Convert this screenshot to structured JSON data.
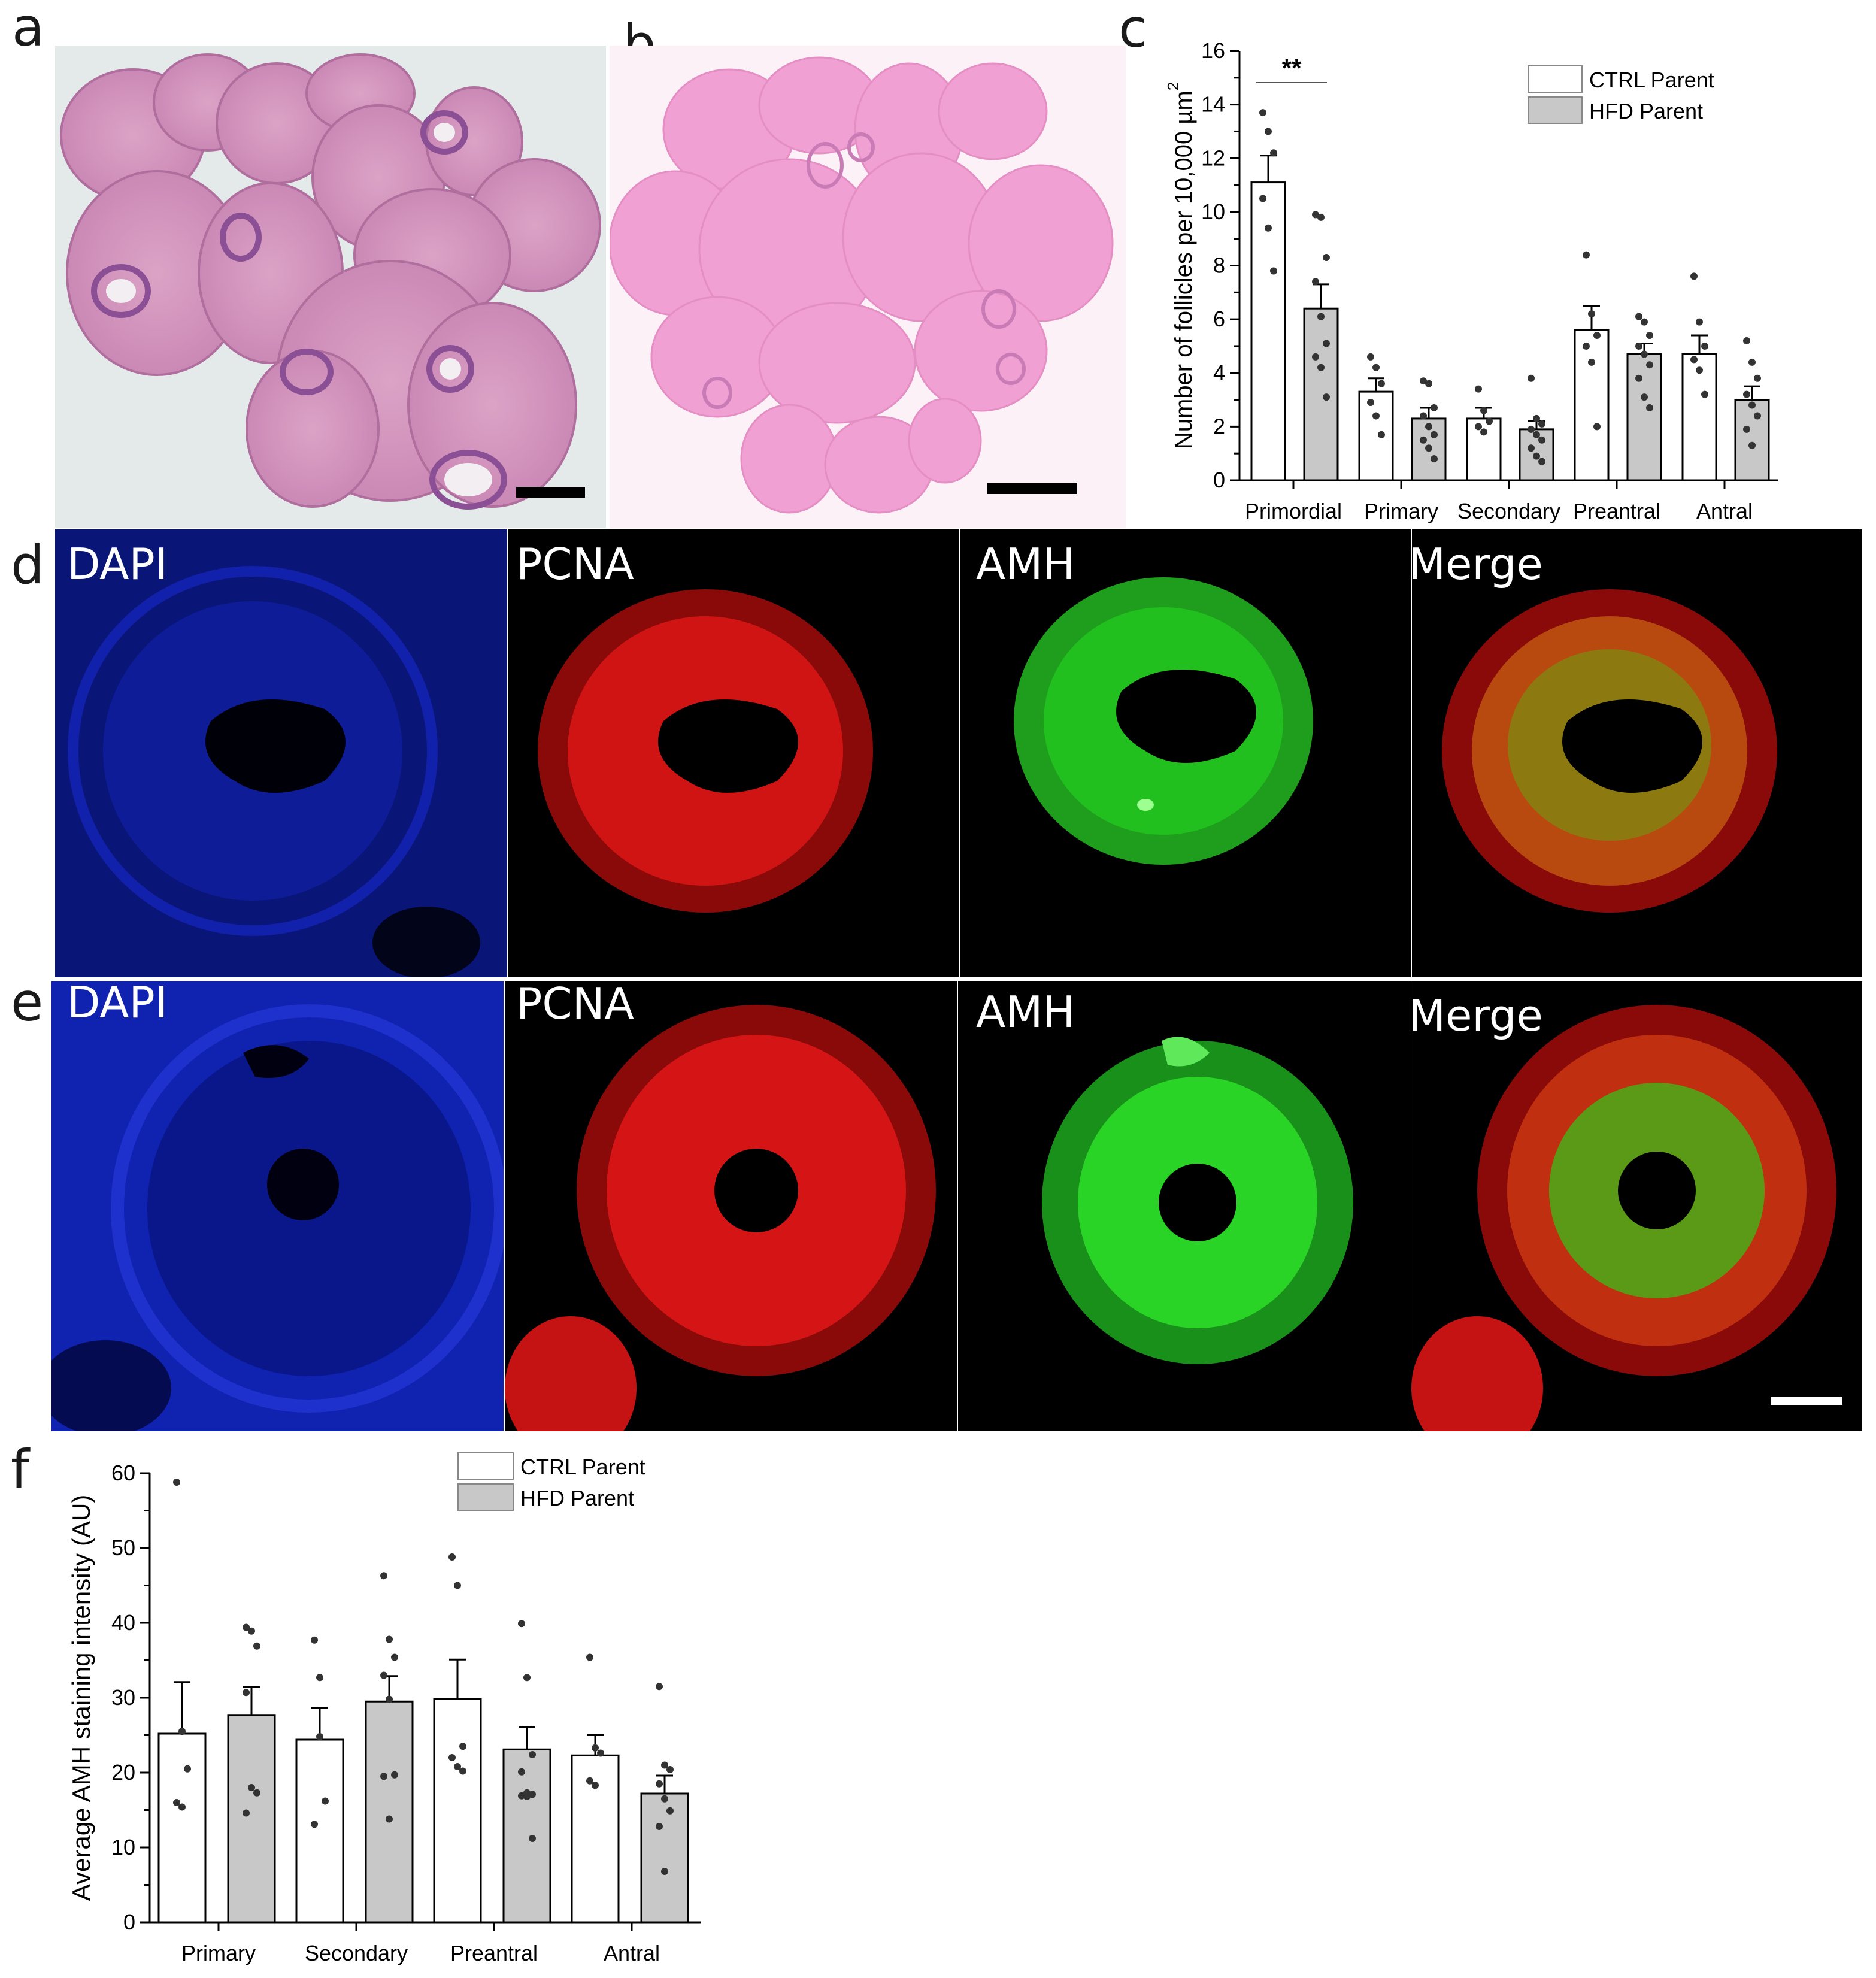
{
  "panels": {
    "a": "a",
    "b": "b",
    "c": "c",
    "d": "d",
    "e": "e",
    "f": "f"
  },
  "fluorescence": {
    "channels": [
      "DAPI",
      "PCNA",
      "AMH",
      "Merge"
    ],
    "colors": {
      "DAPI": "#1a2bd6",
      "PCNA": "#e01818",
      "AMH": "#22c01e",
      "background": "#000000"
    }
  },
  "histology": {
    "colors": {
      "stain_a": "#d79ac0",
      "stain_b": "#f3a3d7",
      "background_a": "#e7ecec",
      "background_b": "#fbf3f8"
    }
  },
  "chart_data": [
    {
      "id": "c",
      "type": "bar",
      "categories": [
        "Primordial",
        "Primary",
        "Secondary",
        "Preantral",
        "Antral"
      ],
      "ylabel_text": "Number of follicles per 10,000 µm",
      "ylabel_sup": "2",
      "ylim": [
        0,
        16
      ],
      "yticks": [
        "0",
        "2",
        "4",
        "6",
        "8",
        "10",
        "12",
        "14",
        "16"
      ],
      "legend": {
        "placement": "top-right",
        "entries": [
          "CTRL Parent",
          "HFD Parent"
        ]
      },
      "significance": {
        "label": "**",
        "category": "Primordial"
      },
      "series": [
        {
          "name": "CTRL Parent",
          "color": "#ffffff",
          "values": [
            11.1,
            3.3,
            2.3,
            5.6,
            4.7
          ],
          "errors": [
            1.0,
            0.5,
            0.4,
            0.9,
            0.7
          ],
          "points": [
            [
              13.7,
              13.0,
              12.2,
              10.5,
              9.4,
              7.8
            ],
            [
              4.6,
              4.2,
              3.6,
              2.9,
              2.4,
              1.7
            ],
            [
              3.4,
              2.6,
              2.2,
              2.0,
              1.8
            ],
            [
              8.4,
              6.2,
              5.4,
              5.0,
              4.4,
              2.0
            ],
            [
              7.6,
              5.9,
              5.0,
              4.5,
              4.1,
              3.2
            ]
          ]
        },
        {
          "name": "HFD Parent",
          "color": "#c8c8c8",
          "values": [
            6.4,
            2.3,
            1.9,
            4.7,
            3.0
          ],
          "errors": [
            0.9,
            0.4,
            0.3,
            0.4,
            0.5
          ],
          "points": [
            [
              9.9,
              9.8,
              8.3,
              7.4,
              6.1,
              5.1,
              4.6,
              4.2,
              3.1
            ],
            [
              3.7,
              3.6,
              2.7,
              2.4,
              2.0,
              1.7,
              1.5,
              1.2,
              0.8
            ],
            [
              3.8,
              2.3,
              2.1,
              1.9,
              1.7,
              1.5,
              1.2,
              0.9,
              0.7
            ],
            [
              6.1,
              5.9,
              5.4,
              5.0,
              4.7,
              4.3,
              3.8,
              3.1,
              2.7
            ],
            [
              5.2,
              4.4,
              3.8,
              3.2,
              2.8,
              2.4,
              1.9,
              1.3
            ]
          ]
        }
      ]
    },
    {
      "id": "f",
      "type": "bar",
      "categories": [
        "Primary",
        "Secondary",
        "Preantral",
        "Antral"
      ],
      "ylabel": "Average AMH staining intensity (AU)",
      "ylim": [
        0,
        60
      ],
      "yticks": [
        "0",
        "10",
        "20",
        "30",
        "40",
        "50",
        "60"
      ],
      "legend": {
        "placement": "top-center",
        "entries": [
          "CTRL Parent",
          "HFD Parent"
        ]
      },
      "series": [
        {
          "name": "CTRL Parent",
          "color": "#ffffff",
          "values": [
            25.2,
            24.4,
            29.8,
            22.3
          ],
          "errors": [
            6.9,
            4.2,
            5.3,
            2.7
          ],
          "points": [
            [
              58.8,
              25.5,
              20.5,
              16.0,
              15.4
            ],
            [
              37.7,
              32.7,
              16.2,
              13.1,
              24.8
            ],
            [
              48.8,
              45.0,
              23.5,
              22.0,
              20.8,
              20.2
            ],
            [
              35.4,
              23.3,
              22.6,
              18.9,
              18.3
            ]
          ]
        },
        {
          "name": "HFD Parent",
          "color": "#c8c8c8",
          "values": [
            27.7,
            29.5,
            23.1,
            17.2
          ],
          "errors": [
            3.7,
            3.4,
            3.0,
            2.4
          ],
          "points": [
            [
              39.4,
              38.9,
              36.9,
              30.7,
              18.0,
              17.3,
              14.6
            ],
            [
              46.3,
              37.8,
              35.4,
              33.0,
              29.8,
              19.7,
              19.5,
              13.8
            ],
            [
              39.9,
              32.7,
              22.4,
              20.1,
              17.3,
              17.1,
              16.9,
              16.8,
              11.2
            ],
            [
              31.5,
              21.0,
              20.4,
              18.5,
              16.5,
              14.9,
              12.8,
              6.8
            ]
          ]
        }
      ]
    }
  ]
}
